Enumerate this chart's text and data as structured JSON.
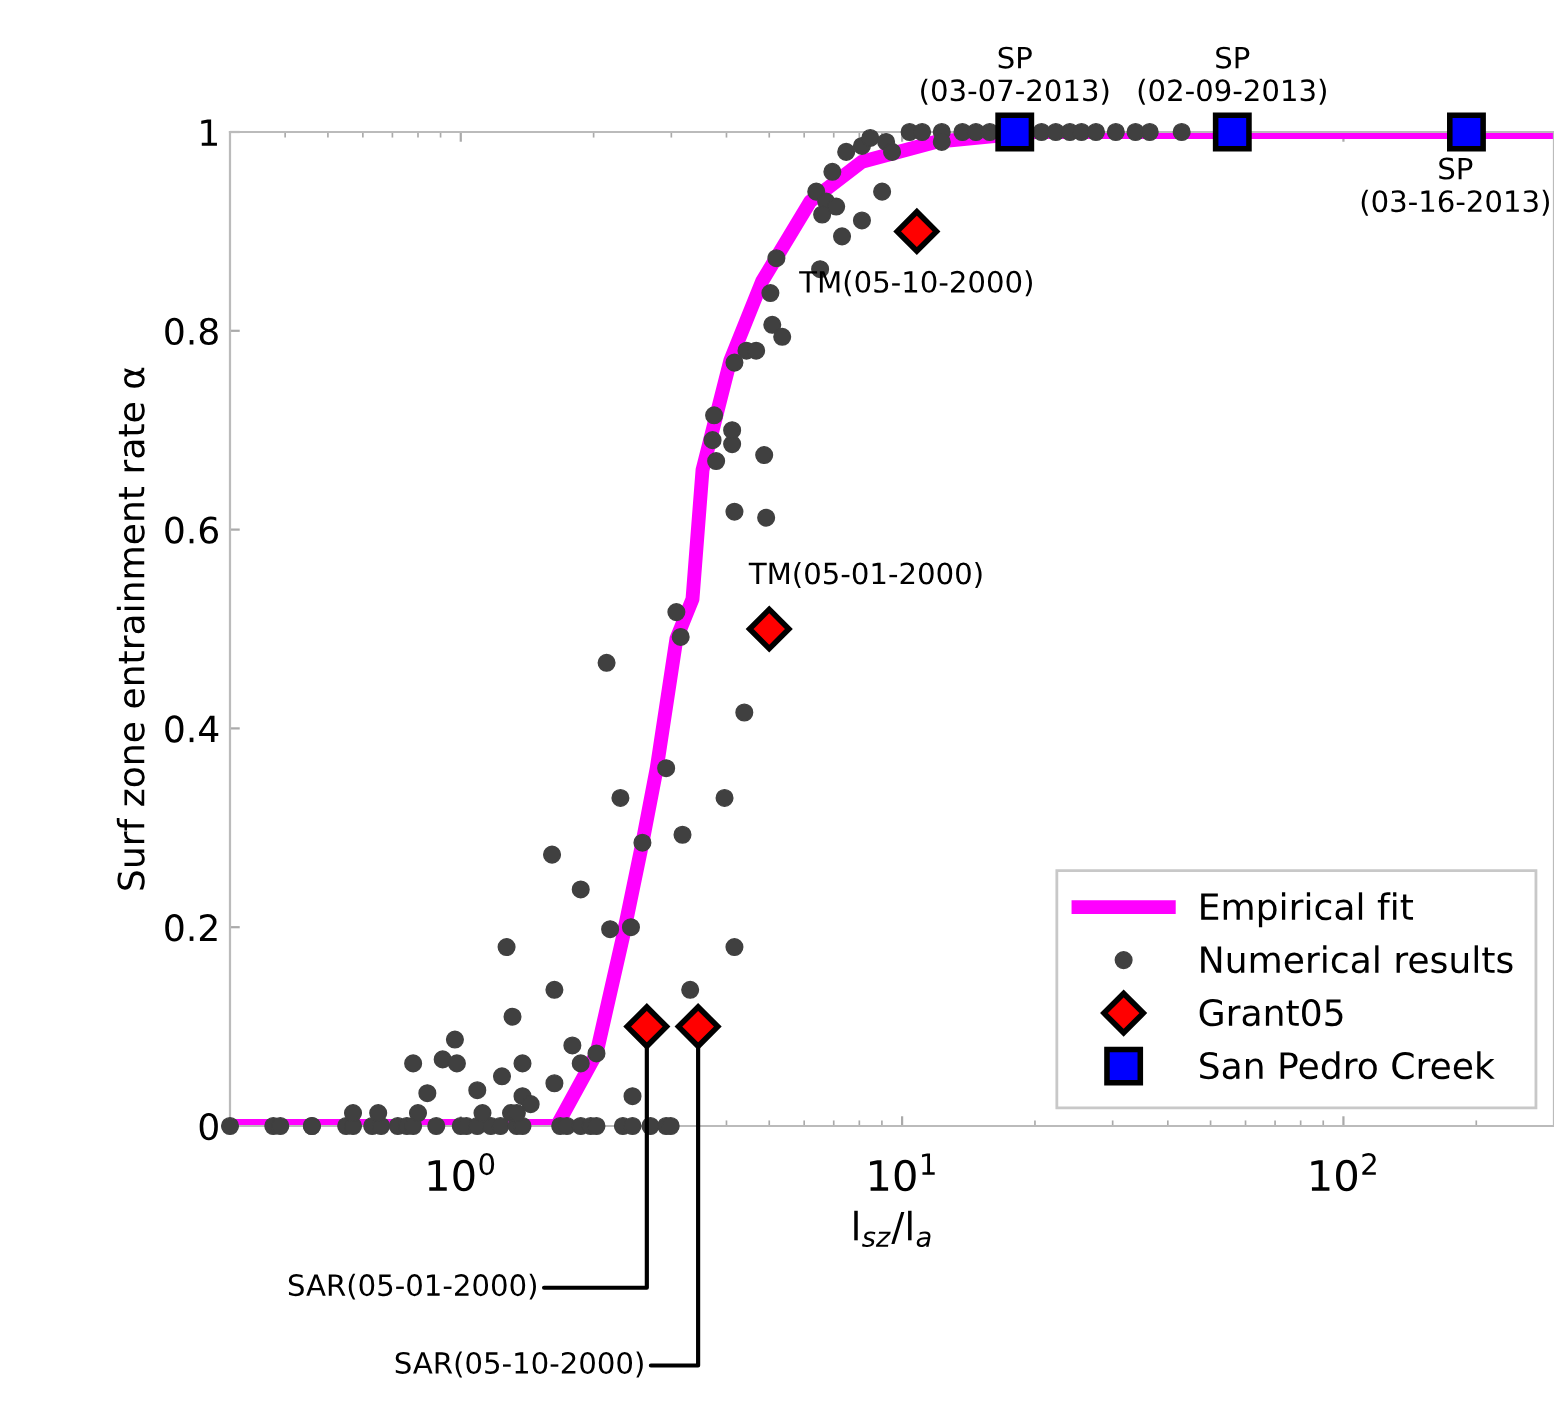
{
  "chart_data": {
    "type": "scatter",
    "xlabel": "l$_{sz}$/l$_{a}$",
    "ylabel": "Surf zone entrainment rate α",
    "log": "x",
    "xlim": [
      0.3,
      300
    ],
    "ylim": [
      0,
      1
    ],
    "xticks": [
      {
        "value": 1,
        "label": "10$^{0}$"
      },
      {
        "value": 10,
        "label": "10$^{1}$"
      },
      {
        "value": 100,
        "label": "10$^{2}$"
      }
    ],
    "yticks": [
      0,
      0.2,
      0.4,
      0.6,
      0.8,
      1
    ],
    "grid": false,
    "legend": "bottom right",
    "series": [
      {
        "name": "Empirical fit",
        "type": "line",
        "color": "#ff00ff",
        "marker": "none",
        "line_style": "solid",
        "x": [
          0.3,
          1.5,
          1.65,
          2.03,
          2.33,
          2.58,
          2.78,
          3.08,
          3.35,
          3.53,
          4.08,
          4.82,
          6.19,
          8.11,
          11.9,
          20,
          300
        ],
        "values": [
          0,
          0,
          0,
          0.073,
          0.19,
          0.285,
          0.36,
          0.49,
          0.53,
          0.66,
          0.77,
          0.85,
          0.93,
          0.97,
          0.99,
          1,
          1
        ]
      },
      {
        "name": "Numerical results",
        "color": "#404040",
        "marker": "circle",
        "x": [
          0.3,
          0.376,
          0.39,
          0.46,
          0.46,
          0.55,
          0.57,
          0.63,
          0.66,
          0.72,
          0.755,
          0.78,
          0.88,
          1.0,
          1.03,
          1.09,
          1.17,
          1.23,
          1.34,
          1.38,
          1.68,
          1.74,
          1.87,
          1.97,
          2.03,
          2.33,
          2.45,
          2.69,
          2.92,
          2.99,
          0.57,
          0.65,
          0.8,
          1.12,
          1.3,
          1.34,
          0.84,
          1.09,
          1.24,
          1.38,
          1.44,
          0.78,
          0.91,
          0.98,
          0.97,
          1.38,
          1.63,
          1.79,
          1.87,
          2.03,
          2.45,
          1.31,
          1.63,
          3.31,
          1.27,
          2.18,
          2.43,
          4.17,
          1.87,
          1.61,
          2.58,
          3.18,
          3.96,
          2.3,
          2.92,
          4.39,
          2.14,
          3.15,
          3.08,
          4.92,
          4.17,
          4.87,
          3.79,
          3.72,
          4.12,
          3.75,
          4.12,
          4.17,
          4.44,
          4.67,
          5.08,
          5.35,
          5.03,
          5.19,
          6.52,
          6.39,
          6.73,
          7.09,
          6.59,
          7.31,
          8.11,
          6.95,
          7.47,
          8.11,
          8.47,
          9.01,
          9.2,
          9.49,
          10.4,
          11.1,
          12.3,
          13.7,
          14.7,
          15.8,
          20.7,
          22.3,
          24.0,
          25.5,
          27.5,
          30.5,
          33.8,
          36.4,
          43.0,
          12.3
        ],
        "values": [
          0,
          0,
          0,
          0,
          0,
          0,
          0,
          0,
          0,
          0,
          0,
          0,
          0,
          0,
          0,
          0,
          0,
          0,
          0,
          0,
          0,
          0,
          0,
          0,
          0,
          0,
          0,
          0,
          0,
          0,
          0.013,
          0.013,
          0.013,
          0.013,
          0.013,
          0.013,
          0.033,
          0.036,
          0.05,
          0.03,
          0.022,
          0.063,
          0.067,
          0.063,
          0.087,
          0.063,
          0.043,
          0.081,
          0.063,
          0.073,
          0.03,
          0.11,
          0.137,
          0.137,
          0.18,
          0.198,
          0.2,
          0.18,
          0.238,
          0.273,
          0.285,
          0.293,
          0.33,
          0.33,
          0.36,
          0.416,
          0.466,
          0.492,
          0.517,
          0.612,
          0.618,
          0.675,
          0.669,
          0.69,
          0.686,
          0.715,
          0.7,
          0.768,
          0.78,
          0.78,
          0.806,
          0.794,
          0.838,
          0.873,
          0.862,
          0.94,
          0.93,
          0.925,
          0.917,
          0.895,
          0.911,
          0.96,
          0.98,
          0.986,
          0.994,
          0.94,
          0.99,
          0.98,
          1,
          1,
          1,
          1,
          1,
          1,
          1,
          1,
          1,
          1,
          1,
          1,
          1,
          1,
          1,
          0.99
        ]
      },
      {
        "name": "Grant05",
        "color": "#ff0000",
        "marker": "diamond",
        "x": [
          2.64,
          3.45,
          5.0,
          10.8
        ],
        "values": [
          0.1,
          0.1,
          0.5,
          0.9
        ]
      },
      {
        "name": "San Pedro Creek",
        "color": "#0000ff",
        "marker": "square",
        "x": [
          18,
          56,
          190
        ],
        "values": [
          1,
          1,
          1
        ]
      }
    ],
    "annotations": [
      {
        "text": "SP\n(03-07-2013)",
        "x": 18,
        "y": 1
      },
      {
        "text": "SP\n(02-09-2013)",
        "x": 56,
        "y": 1
      },
      {
        "text": "SP\n(03-16-2013)",
        "x": 190,
        "y": 1
      },
      {
        "text": "TM(05-10-2000)",
        "x": 10.8,
        "y": 0.9
      },
      {
        "text": "TM(05-01-2000)",
        "x": 5.0,
        "y": 0.5
      },
      {
        "text": "SAR(05-01-2000)",
        "x": 2.64,
        "y": 0.1
      },
      {
        "text": "SAR(05-10-2000)",
        "x": 3.45,
        "y": 0.1
      }
    ]
  }
}
